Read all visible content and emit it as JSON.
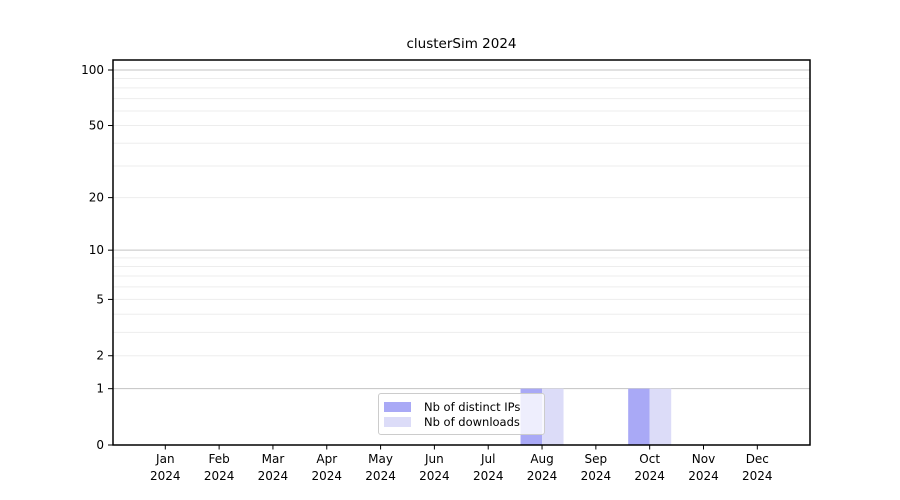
{
  "title": "clusterSim 2024",
  "legend": {
    "items": [
      {
        "label": "Nb of distinct IPs",
        "color": "#a9a9f6"
      },
      {
        "label": "Nb of downloads",
        "color": "#dcdcf8"
      }
    ]
  },
  "chart_data": {
    "type": "bar",
    "title": "clusterSim 2024",
    "categories": [
      "Jan 2024",
      "Feb 2024",
      "Mar 2024",
      "Apr 2024",
      "May 2024",
      "Jun 2024",
      "Jul 2024",
      "Aug 2024",
      "Sep 2024",
      "Oct 2024",
      "Nov 2024",
      "Dec 2024"
    ],
    "series": [
      {
        "name": "Nb of distinct IPs",
        "color": "#a9a9f6",
        "values": [
          0,
          0,
          0,
          0,
          0,
          0,
          0,
          1,
          0,
          1,
          0,
          0
        ]
      },
      {
        "name": "Nb of downloads",
        "color": "#dcdcf8",
        "values": [
          0,
          0,
          0,
          0,
          0,
          0,
          0,
          1,
          0,
          1,
          0,
          0
        ]
      }
    ],
    "xlabel": "",
    "ylabel": "",
    "yscale": "log1p",
    "ylim": [
      0,
      115
    ],
    "ytick_labels": [
      0,
      1,
      2,
      5,
      10,
      20,
      50,
      100
    ],
    "gridlines": {
      "major_values": [
        1,
        10,
        100
      ],
      "minor_values": [
        2,
        3,
        4,
        5,
        6,
        7,
        8,
        9,
        20,
        30,
        40,
        50,
        60,
        70,
        80,
        90
      ],
      "major_color": "#c3c3c3",
      "minor_color": "#ededed"
    },
    "grid": true,
    "legend_position": "inside-bottom-center",
    "axis_color": "#000000",
    "plot_background": "#ffffff"
  }
}
